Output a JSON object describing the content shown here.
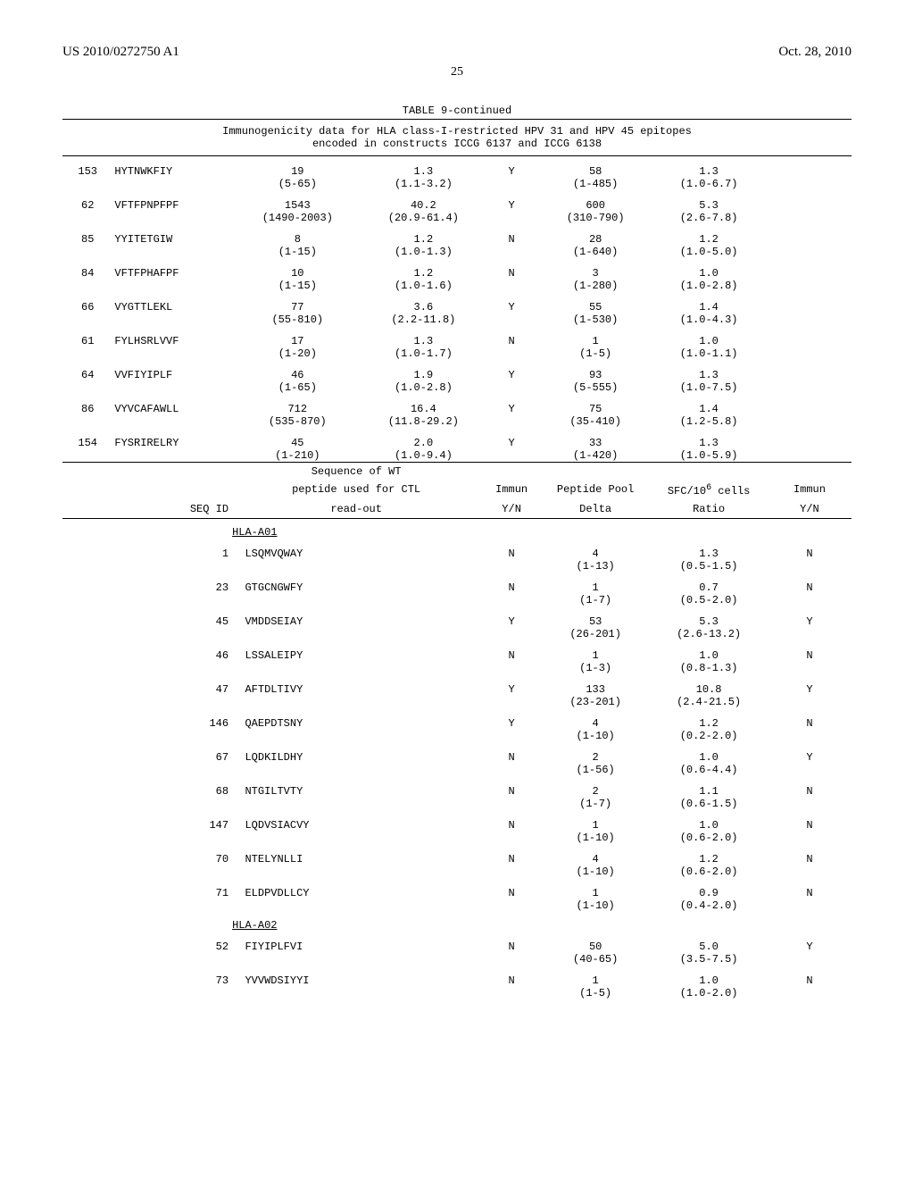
{
  "header": {
    "pub_number": "US 2010/0272750 A1",
    "pub_date": "Oct. 28, 2010",
    "page_number": "25"
  },
  "table": {
    "title": "TABLE 9-continued",
    "caption_line1": "Immunogenicity data for HLA class-I-restricted HPV 31 and HPV 45 epitopes",
    "caption_line2": "encoded in constructs ICCG 6137 and ICCG 6138",
    "rows_top": [
      {
        "seq": "153",
        "pep": "HYTNWKFIY",
        "c3": "19",
        "c3s": "(5-65)",
        "c4": "1.3",
        "c4s": "(1.1-3.2)",
        "c5": "Y",
        "c6": "58",
        "c6s": "(1-485)",
        "c7": "1.3",
        "c7s": "(1.0-6.7)"
      },
      {
        "seq": "62",
        "pep": "VFTFPNPFPF",
        "c3": "1543",
        "c3s": "(1490-2003)",
        "c4": "40.2",
        "c4s": "(20.9-61.4)",
        "c5": "Y",
        "c6": "600",
        "c6s": "(310-790)",
        "c7": "5.3",
        "c7s": "(2.6-7.8)"
      },
      {
        "seq": "85",
        "pep": "YYITETGIW",
        "c3": "8",
        "c3s": "(1-15)",
        "c4": "1.2",
        "c4s": "(1.0-1.3)",
        "c5": "N",
        "c6": "28",
        "c6s": "(1-640)",
        "c7": "1.2",
        "c7s": "(1.0-5.0)"
      },
      {
        "seq": "84",
        "pep": "VFTFPHAFPF",
        "c3": "10",
        "c3s": "(1-15)",
        "c4": "1.2",
        "c4s": "(1.0-1.6)",
        "c5": "N",
        "c6": "3",
        "c6s": "(1-280)",
        "c7": "1.0",
        "c7s": "(1.0-2.8)"
      },
      {
        "seq": "66",
        "pep": "VYGTTLEKL",
        "c3": "77",
        "c3s": "(55-810)",
        "c4": "3.6",
        "c4s": "(2.2-11.8)",
        "c5": "Y",
        "c6": "55",
        "c6s": "(1-530)",
        "c7": "1.4",
        "c7s": "(1.0-4.3)"
      },
      {
        "seq": "61",
        "pep": "FYLHSRLVVF",
        "c3": "17",
        "c3s": "(1-20)",
        "c4": "1.3",
        "c4s": "(1.0-1.7)",
        "c5": "N",
        "c6": "1",
        "c6s": "(1-5)",
        "c7": "1.0",
        "c7s": "(1.0-1.1)"
      },
      {
        "seq": "64",
        "pep": "VVFIYIPLF",
        "c3": "46",
        "c3s": "(1-65)",
        "c4": "1.9",
        "c4s": "(1.0-2.8)",
        "c5": "Y",
        "c6": "93",
        "c6s": "(5-555)",
        "c7": "1.3",
        "c7s": "(1.0-7.5)"
      },
      {
        "seq": "86",
        "pep": "VYVCAFAWLL",
        "c3": "712",
        "c3s": "(535-870)",
        "c4": "16.4",
        "c4s": "(11.8-29.2)",
        "c5": "Y",
        "c6": "75",
        "c6s": "(35-410)",
        "c7": "1.4",
        "c7s": "(1.2-5.8)"
      },
      {
        "seq": "154",
        "pep": "FYSRIRELRY",
        "c3": "45",
        "c3s": "(1-210)",
        "c4": "2.0",
        "c4s": "(1.0-9.4)",
        "c5": "Y",
        "c6": "33",
        "c6s": "(1-420)",
        "c7": "1.3",
        "c7s": "(1.0-5.9)"
      }
    ],
    "mid_header": {
      "h1_l1": "",
      "h1_l2": "",
      "h1_l3": "SEQ ID",
      "h2_l1": "Sequence of WT",
      "h2_l2": "peptide used for CTL",
      "h2_l3": "read-out",
      "h3_l1": "",
      "h3_l2": "Immun",
      "h3_l3": "Y/N",
      "h4_l1": "",
      "h4_l2": "Peptide Pool",
      "h4_l3": "Delta",
      "h5_l1": "",
      "h5_l2_html": "SFC/10⁶ cells",
      "h5_l3": "Ratio",
      "h6_l1": "",
      "h6_l2": "Immun",
      "h6_l3": "Y/N"
    },
    "group1": "HLA-A01",
    "rows_bot1": [
      {
        "seq": "1",
        "pep": "LSQMVQWAY",
        "yn": "N",
        "d": "4",
        "ds": "(1-13)",
        "r": "1.3",
        "rs": "(0.5-1.5)",
        "i": "N"
      },
      {
        "seq": "23",
        "pep": "GTGCNGWFY",
        "yn": "N",
        "d": "1",
        "ds": "(1-7)",
        "r": "0.7",
        "rs": "(0.5-2.0)",
        "i": "N"
      },
      {
        "seq": "45",
        "pep": "VMDDSEIAY",
        "yn": "Y",
        "d": "53",
        "ds": "(26-201)",
        "r": "5.3",
        "rs": "(2.6-13.2)",
        "i": "Y"
      },
      {
        "seq": "46",
        "pep": "LSSALEIPY",
        "yn": "N",
        "d": "1",
        "ds": "(1-3)",
        "r": "1.0",
        "rs": "(0.8-1.3)",
        "i": "N"
      },
      {
        "seq": "47",
        "pep": "AFTDLTIVY",
        "yn": "Y",
        "d": "133",
        "ds": "(23-201)",
        "r": "10.8",
        "rs": "(2.4-21.5)",
        "i": "Y"
      },
      {
        "seq": "146",
        "pep": "QAEPDTSNY",
        "yn": "Y",
        "d": "4",
        "ds": "(1-10)",
        "r": "1.2",
        "rs": "(0.2-2.0)",
        "i": "N"
      },
      {
        "seq": "67",
        "pep": "LQDKILDHY",
        "yn": "N",
        "d": "2",
        "ds": "(1-56)",
        "r": "1.0",
        "rs": "(0.6-4.4)",
        "i": "Y"
      },
      {
        "seq": "68",
        "pep": "NTGILTVTY",
        "yn": "N",
        "d": "2",
        "ds": "(1-7)",
        "r": "1.1",
        "rs": "(0.6-1.5)",
        "i": "N"
      },
      {
        "seq": "147",
        "pep": "LQDVSIACVY",
        "yn": "N",
        "d": "1",
        "ds": "(1-10)",
        "r": "1.0",
        "rs": "(0.6-2.0)",
        "i": "N"
      },
      {
        "seq": "70",
        "pep": "NTELYNLLI",
        "yn": "N",
        "d": "4",
        "ds": "(1-10)",
        "r": "1.2",
        "rs": "(0.6-2.0)",
        "i": "N"
      },
      {
        "seq": "71",
        "pep": "ELDPVDLLCY",
        "yn": "N",
        "d": "1",
        "ds": "(1-10)",
        "r": "0.9",
        "rs": "(0.4-2.0)",
        "i": "N"
      }
    ],
    "group2": "HLA-A02",
    "rows_bot2": [
      {
        "seq": "52",
        "pep": "FIYIPLFVI",
        "yn": "N",
        "d": "50",
        "ds": "(40-65)",
        "r": "5.0",
        "rs": "(3.5-7.5)",
        "i": "Y"
      },
      {
        "seq": "73",
        "pep": "YVVWDSIYYI",
        "yn": "N",
        "d": "1",
        "ds": "(1-5)",
        "r": "1.0",
        "rs": "(1.0-2.0)",
        "i": "N"
      }
    ]
  }
}
